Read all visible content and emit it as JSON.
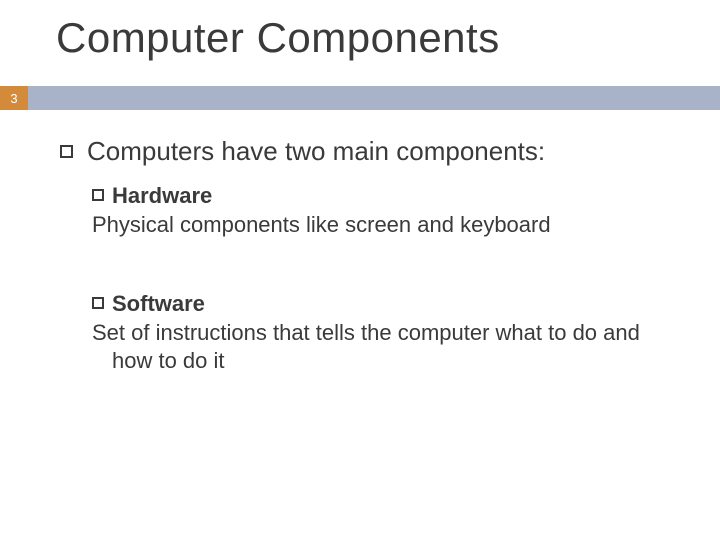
{
  "slide": {
    "title": "Computer Components",
    "page_number": "3",
    "accent_color": "#d48a3b",
    "bar_color": "#a8b3c9",
    "title_fontsize": 42,
    "body_fontsize": 26,
    "sub_fontsize": 22,
    "text_color": "#3a3a3a",
    "background_color": "#ffffff"
  },
  "content": {
    "lead": "Computers have two main components:",
    "items": [
      {
        "heading": "Hardware",
        "body": "Physical components like screen and keyboard"
      },
      {
        "heading": "Software",
        "body": "Set of instructions that tells the computer what to do and how to do it"
      }
    ]
  }
}
